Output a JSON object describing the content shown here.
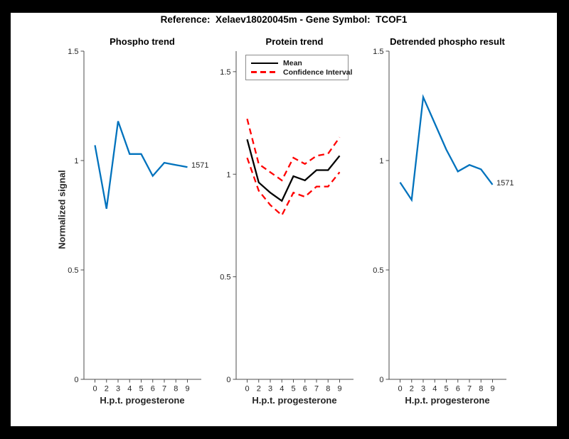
{
  "figure_title": "Reference:  Xelaev18020045m - Gene Symbol:  TCOF1",
  "colors": {
    "frame_bg": "#000000",
    "figure_bg": "#ffffff",
    "blue": "#0072BD",
    "red": "#FF0000",
    "black": "#000000",
    "axis_line": "#4d4d4d",
    "axis_text": "#262626"
  },
  "chart_data": [
    {
      "type": "line",
      "title": "Phospho trend",
      "xlabel": "H.p.t. progesterone",
      "ylabel": "Normalized signal",
      "x_ticklabels": [
        "0",
        "2",
        "3",
        "4",
        "5",
        "6",
        "7",
        "8",
        "9"
      ],
      "y_ticklabels": [
        "0",
        "0.5",
        "1",
        "1.5"
      ],
      "y_tick_values": [
        0,
        0.5,
        1,
        1.5
      ],
      "ylim": [
        0,
        1.5
      ],
      "grid": false,
      "legend": null,
      "end_label": "1571",
      "series": [
        {
          "name": "1571",
          "color": "#0072BD",
          "dashed": false,
          "values": [
            1.07,
            0.78,
            1.18,
            1.03,
            1.03,
            0.93,
            0.99,
            0.98,
            0.97
          ]
        }
      ]
    },
    {
      "type": "line",
      "title": "Protein trend",
      "xlabel": "H.p.t. progesterone",
      "ylabel": "",
      "x_ticklabels": [
        "0",
        "2",
        "3",
        "4",
        "5",
        "6",
        "7",
        "8",
        "9"
      ],
      "y_ticklabels": [
        "0",
        "0.5",
        "1",
        "1.5"
      ],
      "y_tick_values": [
        0,
        0.5,
        1,
        1.5
      ],
      "ylim": [
        0,
        1.6
      ],
      "grid": false,
      "legend": {
        "position": "top-left",
        "entries": [
          {
            "label": "Mean",
            "color": "#000000",
            "dashed": false
          },
          {
            "label": "Confidence Interval",
            "color": "#FF0000",
            "dashed": true
          }
        ]
      },
      "end_label": "",
      "series": [
        {
          "name": "Mean",
          "color": "#000000",
          "dashed": false,
          "values": [
            1.17,
            0.96,
            0.91,
            0.87,
            0.99,
            0.97,
            1.02,
            1.02,
            1.09
          ]
        },
        {
          "name": "Confidence Interval upper",
          "color": "#FF0000",
          "dashed": true,
          "values": [
            1.27,
            1.05,
            1.01,
            0.97,
            1.08,
            1.05,
            1.09,
            1.1,
            1.18
          ]
        },
        {
          "name": "Confidence Interval lower",
          "color": "#FF0000",
          "dashed": true,
          "values": [
            1.08,
            0.92,
            0.85,
            0.8,
            0.91,
            0.89,
            0.94,
            0.94,
            1.01
          ]
        }
      ]
    },
    {
      "type": "line",
      "title": "Detrended phospho result",
      "xlabel": "H.p.t. progesterone",
      "ylabel": "",
      "x_ticklabels": [
        "0",
        "2",
        "3",
        "4",
        "5",
        "6",
        "7",
        "8",
        "9"
      ],
      "y_ticklabels": [
        "0",
        "0.5",
        "1",
        "1.5"
      ],
      "y_tick_values": [
        0,
        0.5,
        1,
        1.5
      ],
      "ylim": [
        0,
        1.5
      ],
      "grid": false,
      "legend": null,
      "end_label": "1571",
      "series": [
        {
          "name": "1571",
          "color": "#0072BD",
          "dashed": false,
          "values": [
            0.9,
            0.82,
            1.29,
            1.17,
            1.05,
            0.95,
            0.98,
            0.96,
            0.89
          ]
        }
      ]
    }
  ]
}
